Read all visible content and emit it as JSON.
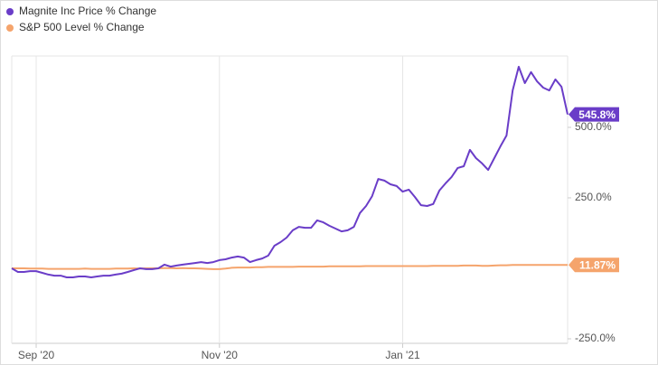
{
  "chart_data": {
    "type": "line",
    "categories": [
      null,
      null,
      null,
      null,
      "Sep '20",
      null,
      null,
      null,
      null,
      null,
      null,
      null,
      null,
      null,
      null,
      null,
      null,
      null,
      null,
      null,
      null,
      null,
      null,
      null,
      null,
      null,
      null,
      null,
      null,
      null,
      null,
      null,
      null,
      null,
      "Nov '20",
      null,
      null,
      null,
      null,
      null,
      null,
      null,
      null,
      null,
      null,
      null,
      null,
      null,
      null,
      null,
      null,
      null,
      null,
      null,
      null,
      null,
      null,
      null,
      null,
      null,
      null,
      null,
      null,
      null,
      "Jan '21",
      null,
      null,
      null,
      null,
      null,
      null,
      null,
      null,
      null,
      null,
      null,
      null,
      null,
      null,
      null,
      null,
      null,
      null,
      null,
      null,
      null,
      null,
      null,
      null,
      null,
      null,
      null
    ],
    "series": [
      {
        "name": "Magnite Inc Price % Change",
        "color": "#6a3dc8",
        "values": [
          0,
          -13,
          -13,
          -10,
          -10,
          -16,
          -22,
          -26,
          -26,
          -32,
          -32,
          -29,
          -29,
          -32,
          -29,
          -26,
          -26,
          -22,
          -19,
          -13,
          -6,
          0,
          -3,
          -3,
          0,
          13,
          6,
          10,
          13,
          16,
          19,
          22,
          19,
          22,
          29,
          32,
          38,
          42,
          38,
          22,
          29,
          35,
          45,
          80,
          93,
          109,
          135,
          147,
          144,
          144,
          170,
          163,
          151,
          141,
          131,
          135,
          147,
          196,
          221,
          256,
          317,
          311,
          298,
          292,
          272,
          279,
          253,
          224,
          221,
          228,
          276,
          301,
          324,
          356,
          362,
          420,
          391,
          372,
          349,
          391,
          433,
          471,
          631,
          715,
          657,
          696,
          663,
          641,
          631,
          670,
          644,
          545.8
        ],
        "value_labels": [
          null,
          null,
          null,
          null,
          null,
          null,
          null,
          null,
          null,
          null,
          null,
          null,
          null,
          null,
          null,
          null,
          null,
          null,
          null,
          null,
          null,
          null,
          null,
          null,
          null,
          null,
          null,
          null,
          null,
          null,
          null,
          null,
          null,
          null,
          null,
          null,
          null,
          null,
          null,
          null,
          null,
          null,
          null,
          null,
          null,
          null,
          null,
          null,
          null,
          null,
          null,
          null,
          null,
          null,
          null,
          null,
          null,
          null,
          null,
          null,
          null,
          null,
          null,
          null,
          null,
          null,
          null,
          null,
          null,
          null,
          null,
          null,
          null,
          null,
          null,
          null,
          null,
          null,
          null,
          null,
          null,
          null,
          null,
          null,
          null,
          null,
          null,
          null,
          null,
          null,
          null,
          "545.8%"
        ]
      },
      {
        "name": "S&P 500 Level % Change",
        "color": "#f5a46c",
        "values": [
          0,
          0,
          0,
          -1,
          -1,
          -1,
          -2,
          -2,
          -2,
          -2,
          -2,
          -2,
          -1,
          -2,
          -2,
          -2,
          -2,
          -1,
          -1,
          -1,
          0,
          -1,
          0,
          0,
          0,
          1,
          1,
          0,
          1,
          0,
          0,
          -1,
          -2,
          -3,
          -3,
          -1,
          2,
          3,
          3,
          3,
          4,
          4,
          5,
          5,
          5,
          5,
          5,
          6,
          6,
          6,
          6,
          6,
          7,
          7,
          7,
          7,
          7,
          7,
          8,
          8,
          8,
          8,
          8,
          8,
          8,
          8,
          8,
          8,
          8,
          9,
          9,
          9,
          9,
          9,
          10,
          10,
          10,
          9,
          9,
          10,
          11,
          11,
          12,
          12,
          12,
          12,
          12,
          12,
          12,
          12,
          12,
          11.87
        ],
        "value_labels": [
          null,
          null,
          null,
          null,
          null,
          null,
          null,
          null,
          null,
          null,
          null,
          null,
          null,
          null,
          null,
          null,
          null,
          null,
          null,
          null,
          null,
          null,
          null,
          null,
          null,
          null,
          null,
          null,
          null,
          null,
          null,
          null,
          null,
          null,
          null,
          null,
          null,
          null,
          null,
          null,
          null,
          null,
          null,
          null,
          null,
          null,
          null,
          null,
          null,
          null,
          null,
          null,
          null,
          null,
          null,
          null,
          null,
          null,
          null,
          null,
          null,
          null,
          null,
          null,
          null,
          null,
          null,
          null,
          null,
          null,
          null,
          null,
          null,
          null,
          null,
          null,
          null,
          null,
          null,
          null,
          null,
          null,
          null,
          null,
          null,
          null,
          null,
          null,
          null,
          null,
          null,
          "11.87%"
        ]
      }
    ],
    "ylim": [
      -266,
      753
    ],
    "yticks": [
      {
        "value": -250,
        "label": "-250.0%"
      },
      {
        "value": 250,
        "label": "250.0%"
      },
      {
        "value": 500,
        "label": "500.0%"
      }
    ],
    "xgrid": true,
    "legend": "top-left"
  }
}
